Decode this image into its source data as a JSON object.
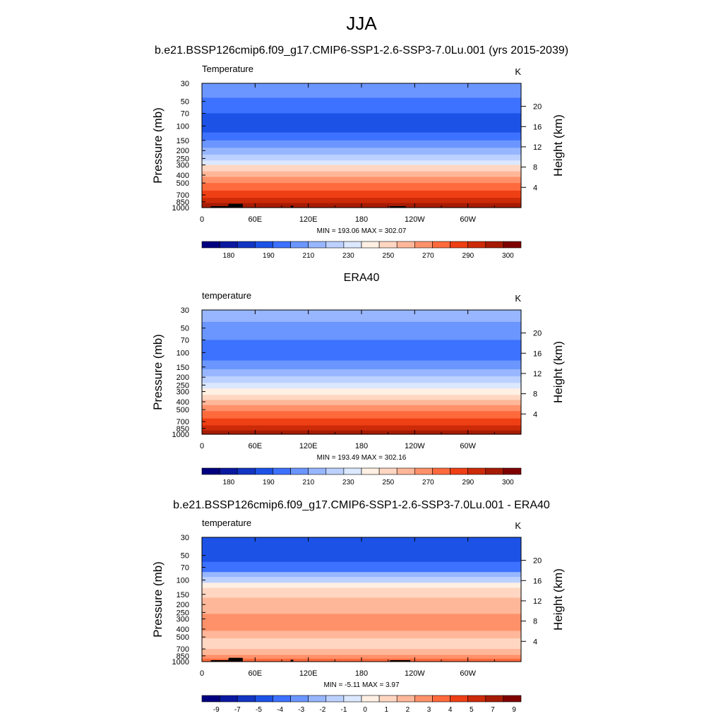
{
  "title": "JJA",
  "chart_data": [
    {
      "type": "heatmap",
      "title": "b.e21.BSSP126cmip6.f09_g17.CMIP6-SSP1-2.6-SSP3-7.0Lu.001 (yrs 2015-2039)",
      "left_label": "Temperature",
      "units": "K",
      "ylabel": "Pressure (mb)",
      "ylabel_right": "Height (km)",
      "x_ticks": [
        "0",
        "60E",
        "120E",
        "180",
        "120W",
        "60W"
      ],
      "y_ticks": [
        "30",
        "50",
        "70",
        "100",
        "150",
        "200",
        "250",
        "300",
        "400",
        "500",
        "700",
        "850",
        "1000"
      ],
      "y_right_ticks": [
        "20",
        "16",
        "12",
        "8",
        "4"
      ],
      "stats": "MIN = 193.06  MAX = 302.07",
      "colorbar_labels": [
        "180",
        "190",
        "210",
        "230",
        "250",
        "270",
        "290",
        "300"
      ],
      "colors": [
        "#00007f",
        "#0a19a0",
        "#1335c3",
        "#1c52e6",
        "#3d71ff",
        "#6b96ff",
        "#97b6ff",
        "#bcd1ff",
        "#dbe8ff",
        "#fff0e3",
        "#ffd6c2",
        "#ffb799",
        "#ff916a",
        "#ff6a3d",
        "#ef3f15",
        "#cc2b09",
        "#a61b04",
        "#7f0000"
      ],
      "bands": [
        [
          30,
          45,
          5
        ],
        [
          45,
          70,
          4
        ],
        [
          70,
          120,
          3
        ],
        [
          120,
          150,
          4
        ],
        [
          150,
          185,
          5
        ],
        [
          185,
          225,
          6
        ],
        [
          225,
          265,
          7
        ],
        [
          265,
          300,
          8
        ],
        [
          300,
          360,
          10
        ],
        [
          360,
          420,
          11
        ],
        [
          420,
          500,
          12
        ],
        [
          500,
          620,
          13
        ],
        [
          620,
          760,
          14
        ],
        [
          760,
          880,
          15
        ],
        [
          880,
          1000,
          16
        ]
      ],
      "topography": [
        [
          10,
          40,
          960
        ],
        [
          30,
          46,
          900
        ],
        [
          100,
          103,
          950
        ],
        [
          212,
          230,
          960
        ]
      ]
    },
    {
      "type": "heatmap",
      "title": "ERA40",
      "left_label": "temperature",
      "units": "K",
      "ylabel": "Pressure (mb)",
      "ylabel_right": "Height (km)",
      "x_ticks": [
        "0",
        "60E",
        "120E",
        "180",
        "120W",
        "60W"
      ],
      "y_ticks": [
        "30",
        "50",
        "70",
        "100",
        "150",
        "200",
        "250",
        "300",
        "400",
        "500",
        "700",
        "850",
        "1000"
      ],
      "y_right_ticks": [
        "20",
        "16",
        "12",
        "8",
        "4"
      ],
      "stats": "MIN = 193.49  MAX = 302.16",
      "colorbar_labels": [
        "180",
        "190",
        "210",
        "230",
        "250",
        "270",
        "290",
        "300"
      ],
      "colors": [
        "#00007f",
        "#0a19a0",
        "#1335c3",
        "#1c52e6",
        "#3d71ff",
        "#6b96ff",
        "#97b6ff",
        "#bcd1ff",
        "#dbe8ff",
        "#fff0e3",
        "#ffd6c2",
        "#ffb799",
        "#ff916a",
        "#ff6a3d",
        "#ef3f15",
        "#cc2b09",
        "#a61b04",
        "#7f0000"
      ],
      "bands": [
        [
          30,
          42,
          6
        ],
        [
          42,
          70,
          5
        ],
        [
          70,
          125,
          4
        ],
        [
          125,
          160,
          5
        ],
        [
          160,
          195,
          6
        ],
        [
          195,
          235,
          7
        ],
        [
          235,
          275,
          8
        ],
        [
          275,
          330,
          9
        ],
        [
          330,
          380,
          10
        ],
        [
          380,
          440,
          11
        ],
        [
          440,
          520,
          12
        ],
        [
          520,
          640,
          13
        ],
        [
          640,
          780,
          14
        ],
        [
          780,
          900,
          15
        ],
        [
          900,
          1000,
          16
        ]
      ],
      "topography": []
    },
    {
      "type": "heatmap",
      "title": "b.e21.BSSP126cmip6.f09_g17.CMIP6-SSP1-2.6-SSP3-7.0Lu.001 - ERA40",
      "left_label": "temperature",
      "units": "K",
      "ylabel": "Pressure (mb)",
      "ylabel_right": "Height (km)",
      "x_ticks": [
        "0",
        "60E",
        "120E",
        "180",
        "120W",
        "60W"
      ],
      "y_ticks": [
        "30",
        "50",
        "70",
        "100",
        "150",
        "200",
        "250",
        "300",
        "400",
        "500",
        "700",
        "850",
        "1000"
      ],
      "y_right_ticks": [
        "20",
        "16",
        "12",
        "8",
        "4"
      ],
      "stats": "MIN =  -5.11  MAX =   3.97",
      "colorbar_labels": [
        "-9",
        "-7",
        "-5",
        "-4",
        "-3",
        "-2",
        "-1",
        "0",
        "1",
        "2",
        "3",
        "4",
        "5",
        "7",
        "9"
      ],
      "colors": [
        "#00007f",
        "#0a19a0",
        "#1335c3",
        "#1c52e6",
        "#3d71ff",
        "#6b96ff",
        "#97b6ff",
        "#bcd1ff",
        "#dbe8ff",
        "#fff0e3",
        "#ffd6c2",
        "#ffb799",
        "#ff916a",
        "#ff6a3d",
        "#ef3f15",
        "#cc2b09",
        "#a61b04",
        "#7f0000"
      ],
      "bands": [
        [
          30,
          60,
          3
        ],
        [
          60,
          80,
          4
        ],
        [
          80,
          92,
          6
        ],
        [
          92,
          108,
          7
        ],
        [
          108,
          125,
          9
        ],
        [
          125,
          165,
          10
        ],
        [
          165,
          260,
          11
        ],
        [
          260,
          420,
          12
        ],
        [
          420,
          520,
          11
        ],
        [
          520,
          700,
          10
        ],
        [
          700,
          830,
          11
        ],
        [
          830,
          920,
          12
        ],
        [
          920,
          1000,
          13
        ]
      ],
      "topography": [
        [
          10,
          40,
          960
        ],
        [
          30,
          46,
          900
        ],
        [
          100,
          103,
          950
        ],
        [
          212,
          235,
          960
        ]
      ]
    }
  ]
}
